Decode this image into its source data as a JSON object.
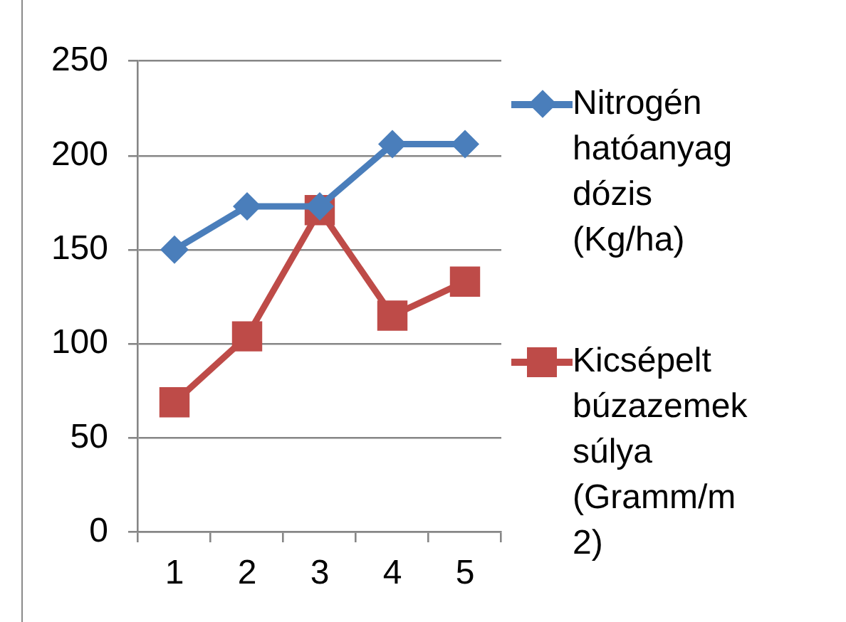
{
  "chart_data": {
    "type": "line",
    "categories": [
      "1",
      "2",
      "3",
      "4",
      "5"
    ],
    "series": [
      {
        "name": "Nitrogén hatóanyag dózis (Kg/ha)",
        "color": "#4a7ebb",
        "marker": "diamond",
        "values": [
          150,
          173,
          173,
          206,
          206
        ]
      },
      {
        "name": "Kicsépelt búzazemek súlya (Gramm/m2)",
        "color": "#be4b48",
        "marker": "square",
        "values": [
          69,
          104,
          171,
          115,
          133
        ]
      }
    ],
    "ylim": [
      0,
      250
    ],
    "yticks": [
      0,
      50,
      100,
      150,
      200,
      250
    ],
    "grid": "y",
    "legend": "right",
    "line_style": "solid"
  }
}
